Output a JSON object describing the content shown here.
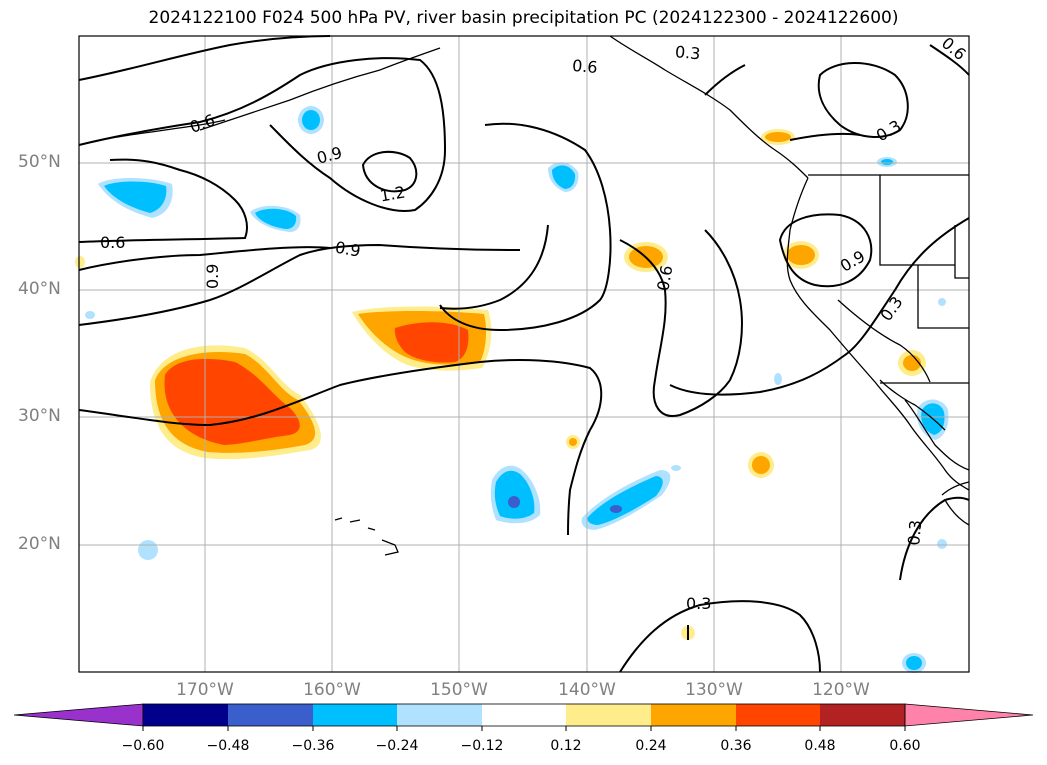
{
  "title": "2024122100 F024 500 hPa PV, river basin precipitation PC (2024122300 - 2024122600)",
  "lat_labels": [
    "50°N",
    "40°N",
    "30°N",
    "20°N"
  ],
  "lon_labels": [
    "170°W",
    "160°W",
    "150°W",
    "140°W",
    "130°W",
    "120°W"
  ],
  "contour_labels": [
    "0.6",
    "0.9",
    "1.2",
    "0.6",
    "0.9",
    "0.9",
    "0.6",
    "0.3",
    "0.6",
    "0.3",
    "0.6",
    "0.9",
    "0.3",
    "0.3",
    "0.3"
  ],
  "colorbar": {
    "tick_labels": [
      "−0.60",
      "−0.48",
      "−0.36",
      "−0.24",
      "−0.12",
      "0.12",
      "0.24",
      "0.36",
      "0.48",
      "0.60"
    ],
    "colors": [
      "#9932cc",
      "#00008b",
      "#3a5fcd",
      "#00bfff",
      "#b0e2ff",
      "#ffffff",
      "#ffec8b",
      "#ffa500",
      "#ff4500",
      "#b22222",
      "#ff82ab"
    ]
  },
  "colors": {
    "frame": "#000000",
    "grid": "#b0b0b0",
    "coast": "#000000"
  }
}
